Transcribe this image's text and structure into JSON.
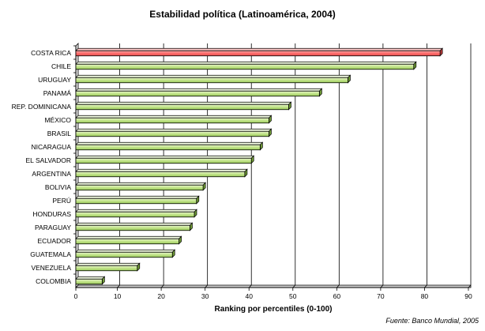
{
  "chart_data": {
    "type": "bar",
    "orientation": "horizontal",
    "title": "Estabilidad política (Latinoamérica, 2004)",
    "xlabel": "Ranking por percentiles (0-100)",
    "ylabel": "",
    "xlim": [
      0,
      90
    ],
    "xticks": [
      0,
      10,
      20,
      30,
      40,
      50,
      60,
      70,
      80,
      90
    ],
    "grid": true,
    "categories": [
      "COSTA RICA",
      "CHILE",
      "URUGUAY",
      "PANAMÁ",
      "REP. DOMINICANA",
      "MÉXICO",
      "BRASIL",
      "NICARAGUA",
      "EL SALVADOR",
      "ARGENTINA",
      "BOLIVIA",
      "PERÚ",
      "HONDURAS",
      "PARAGUAY",
      "ECUADOR",
      "GUATEMALA",
      "VENEZUELA",
      "COLOMBIA"
    ],
    "values": [
      83,
      77,
      62,
      55.5,
      48.5,
      44,
      44,
      42,
      40,
      38.5,
      29,
      27.5,
      27,
      26,
      23.5,
      22,
      14,
      6
    ],
    "colors": {
      "highlight": "#ff7070",
      "bar": "#c5e58f",
      "bar_light": "#eaf7cf",
      "edge": "#000000"
    },
    "highlight_index": 0,
    "source": "Fuente: Banco Mundial, 2005"
  }
}
